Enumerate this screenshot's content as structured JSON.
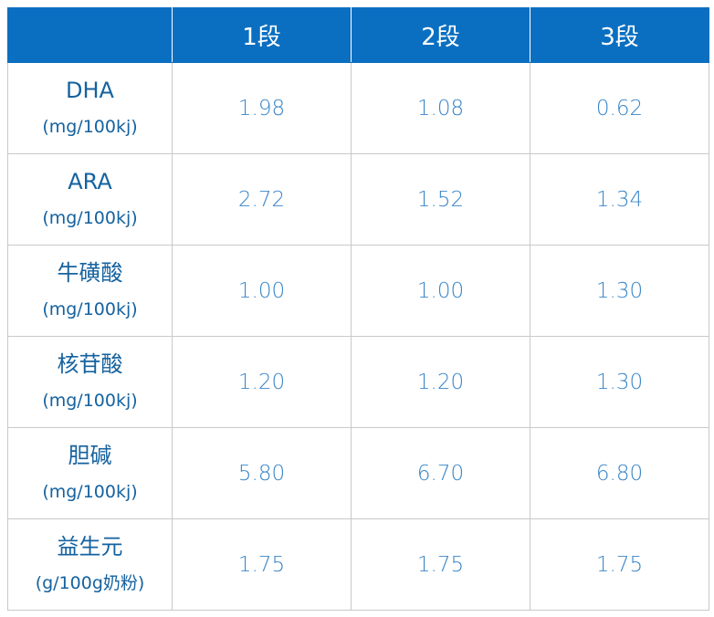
{
  "table": {
    "columns": [
      "1段",
      "2段",
      "3段"
    ],
    "rows": [
      {
        "name": "DHA",
        "unit": "(mg/100kj)",
        "values": [
          "1.98",
          "1.08",
          "0.62"
        ]
      },
      {
        "name": "ARA",
        "unit": "(mg/100kj)",
        "values": [
          "2.72",
          "1.52",
          "1.34"
        ]
      },
      {
        "name": "牛磺酸",
        "unit": "(mg/100kj)",
        "values": [
          "1.00",
          "1.00",
          "1.30"
        ]
      },
      {
        "name": "核苷酸",
        "unit": "(mg/100kj)",
        "values": [
          "1.20",
          "1.20",
          "1.30"
        ]
      },
      {
        "name": "胆碱",
        "unit": "(mg/100kj)",
        "values": [
          "5.80",
          "6.70",
          "6.80"
        ]
      },
      {
        "name": "益生元",
        "unit": "(g/100g奶粉)",
        "values": [
          "1.75",
          "1.75",
          "1.75"
        ]
      }
    ]
  }
}
